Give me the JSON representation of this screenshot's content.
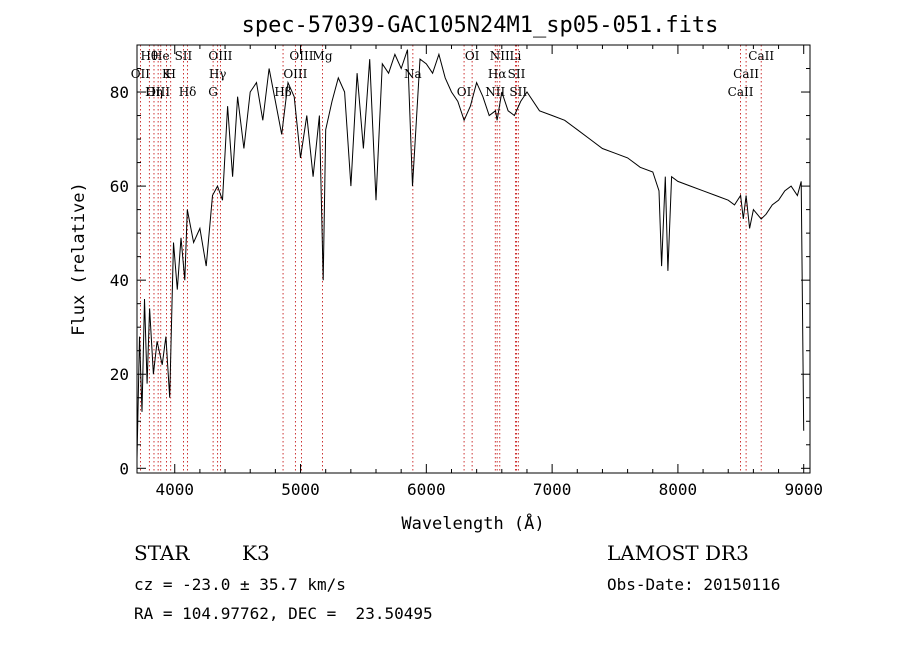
{
  "chart_data": {
    "type": "line",
    "title": "spec-57039-GAC105N24M1_sp05-051.fits",
    "xlabel": "Wavelength (Å)",
    "ylabel": "Flux (relative)",
    "xlim": [
      3700,
      9050
    ],
    "ylim": [
      -1,
      90
    ],
    "xticks": [
      4000,
      5000,
      6000,
      7000,
      8000,
      9000
    ],
    "yticks": [
      0,
      20,
      40,
      60,
      80
    ],
    "grid": false,
    "series": [
      {
        "x": [
          3700,
          3720,
          3740,
          3760,
          3780,
          3800,
          3830,
          3860,
          3900,
          3930,
          3960,
          3990,
          4020,
          4050,
          4080,
          4100,
          4150,
          4200,
          4250,
          4300,
          4340,
          4380,
          4420,
          4460,
          4500,
          4550,
          4600,
          4650,
          4700,
          4750,
          4800,
          4850,
          4900,
          4950,
          5000,
          5050,
          5100,
          5150,
          5180,
          5200,
          5250,
          5300,
          5350,
          5400,
          5450,
          5500,
          5550,
          5600,
          5650,
          5700,
          5750,
          5800,
          5850,
          5890,
          5950,
          6000,
          6050,
          6100,
          6150,
          6200,
          6250,
          6300,
          6350,
          6400,
          6450,
          6500,
          6550,
          6563,
          6600,
          6650,
          6700,
          6750,
          6800,
          6900,
          7000,
          7100,
          7200,
          7300,
          7400,
          7500,
          7600,
          7700,
          7800,
          7850,
          7870,
          7900,
          7920,
          7950,
          8000,
          8100,
          8200,
          8300,
          8400,
          8450,
          8498,
          8520,
          8542,
          8570,
          8600,
          8662,
          8700,
          8750,
          8800,
          8850,
          8900,
          8950,
          8980,
          9000
        ],
        "y": [
          2,
          28,
          12,
          36,
          18,
          34,
          20,
          27,
          22,
          28,
          15,
          48,
          38,
          49,
          40,
          55,
          48,
          51,
          43,
          58,
          60,
          57,
          77,
          62,
          79,
          68,
          80,
          82,
          74,
          85,
          78,
          71,
          82,
          79,
          66,
          75,
          62,
          75,
          40,
          72,
          78,
          83,
          80,
          60,
          84,
          68,
          87,
          57,
          86,
          84,
          88,
          85,
          89,
          60,
          87,
          86,
          84,
          88,
          83,
          80,
          78,
          74,
          77,
          82,
          79,
          75,
          76,
          74,
          80,
          76,
          75,
          78,
          80,
          76,
          75,
          74,
          72,
          70,
          68,
          67,
          66,
          64,
          63,
          59,
          43,
          62,
          42,
          62,
          61,
          60,
          59,
          58,
          57,
          56,
          58,
          53,
          58,
          51,
          55,
          53,
          54,
          56,
          57,
          59,
          60,
          58,
          61,
          8
        ]
      }
    ],
    "lines": [
      {
        "label": "Hθ",
        "x": 3798
      },
      {
        "label": "OII",
        "x": 3727
      },
      {
        "label": "OIII",
        "x": 3868
      },
      {
        "label": "He",
        "x": 3889
      },
      {
        "label": "K",
        "x": 3934
      },
      {
        "label": "Hη",
        "x": 3835
      },
      {
        "label": "SII",
        "x": 4069
      },
      {
        "label": "H",
        "x": 3968
      },
      {
        "label": "Hδ",
        "x": 4102
      },
      {
        "label": "OIII",
        "x": 4363
      },
      {
        "label": "Hγ",
        "x": 4341
      },
      {
        "label": "G",
        "x": 4305
      },
      {
        "label": "OIII",
        "x": 5007
      },
      {
        "label": "OIII",
        "x": 4959
      },
      {
        "label": "Hβ",
        "x": 4861
      },
      {
        "label": "Mg",
        "x": 5175
      },
      {
        "label": "Na",
        "x": 5893
      },
      {
        "label": "OI",
        "x": 6300
      },
      {
        "label": "OI",
        "x": 6364
      },
      {
        "label": "Hα",
        "x": 6563
      },
      {
        "label": "NII",
        "x": 6548
      },
      {
        "label": "NII",
        "x": 6584
      },
      {
        "label": "SII",
        "x": 6717
      },
      {
        "label": "SII",
        "x": 6731
      },
      {
        "label": "Li",
        "x": 6708
      },
      {
        "label": "CaII",
        "x": 8542
      },
      {
        "label": "CaII",
        "x": 8498
      },
      {
        "label": "CaII",
        "x": 8662
      }
    ]
  },
  "info": {
    "class": "STAR",
    "subclass": "K3",
    "survey": "LAMOST DR3",
    "cz": "cz = -23.0 ± 35.7 km/s",
    "obsdate": "Obs-Date: 20150116",
    "radec": "RA = 104.97762, DEC =  23.50495"
  },
  "colors": {
    "line_marker": "#c00000",
    "spectrum": "#000000"
  }
}
